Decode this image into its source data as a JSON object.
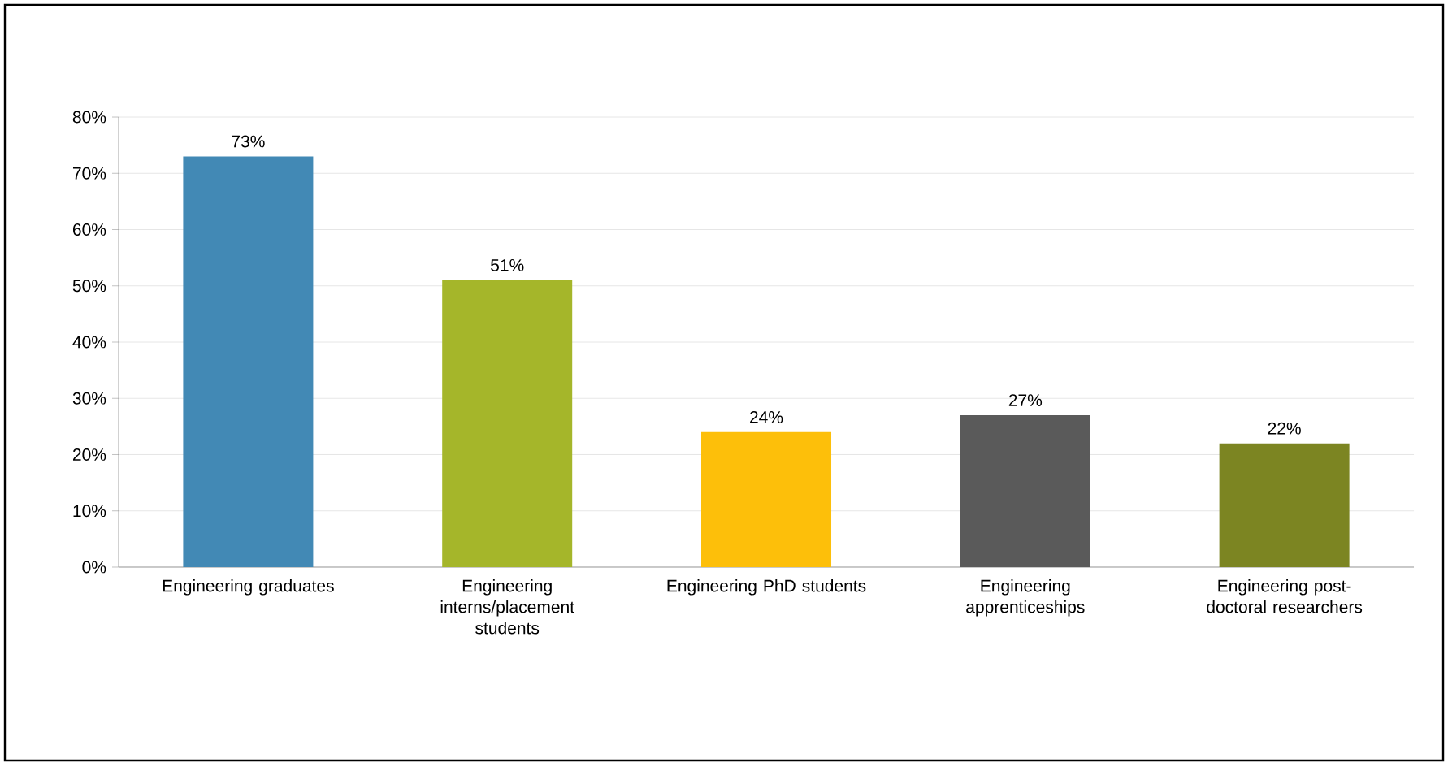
{
  "chart_data": {
    "type": "bar",
    "categories": [
      "Engineering graduates",
      "Engineering interns/placement students",
      "Engineering PhD students",
      "Engineering apprenticeships",
      "Engineering post-doctoral researchers"
    ],
    "values": [
      73,
      51,
      24,
      27,
      22
    ],
    "colors": [
      "#4289b5",
      "#a5b62a",
      "#fdbf0a",
      "#5a5a5a",
      "#7c8522"
    ],
    "value_labels": [
      "73%",
      "51%",
      "24%",
      "27%",
      "22%"
    ],
    "ylim": [
      0,
      80
    ],
    "yticks": [
      {
        "value": 0,
        "label": "0%"
      },
      {
        "value": 10,
        "label": "10%"
      },
      {
        "value": 20,
        "label": "20%"
      },
      {
        "value": 30,
        "label": "30%"
      },
      {
        "value": 40,
        "label": "40%"
      },
      {
        "value": 50,
        "label": "50%"
      },
      {
        "value": 60,
        "label": "60%"
      },
      {
        "value": 70,
        "label": "70%"
      },
      {
        "value": 80,
        "label": "80%"
      }
    ],
    "grid": "y"
  }
}
